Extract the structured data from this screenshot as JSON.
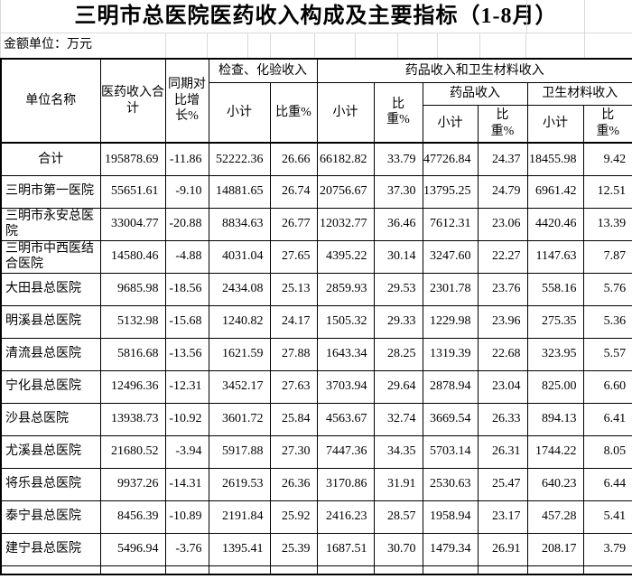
{
  "title": "三明市总医院医药收入构成及主要指标（1-8月）",
  "unit_note": "金额单位：万元",
  "table": {
    "header": {
      "unit_name": "单位名称",
      "total_income": "医药收入合计",
      "yoy_growth": "同期对比增长%",
      "exam_group": "检查、化验收入",
      "drug_material_group": "药品收入和卫生材料收入",
      "drug_group": "药品收入",
      "material_group": "卫生材料收入",
      "subtotal": "小计",
      "share": "比重%"
    },
    "rows": [
      {
        "name": "合计",
        "values": [
          "195878.69",
          "-11.86",
          "52222.36",
          "26.66",
          "66182.82",
          "33.79",
          "47726.84",
          "24.37",
          "18455.98",
          "9.42"
        ]
      },
      {
        "name": "三明市第一医院",
        "values": [
          "55651.61",
          "-9.10",
          "14881.65",
          "26.74",
          "20756.67",
          "37.30",
          "13795.25",
          "24.79",
          "6961.42",
          "12.51"
        ]
      },
      {
        "name": "三明市永安总医院",
        "values": [
          "33004.77",
          "-20.88",
          "8834.63",
          "26.77",
          "12032.77",
          "36.46",
          "7612.31",
          "23.06",
          "4420.46",
          "13.39"
        ]
      },
      {
        "name": "三明市中西医结合医院",
        "values": [
          "14580.46",
          "-4.88",
          "4031.04",
          "27.65",
          "4395.22",
          "30.14",
          "3247.60",
          "22.27",
          "1147.63",
          "7.87"
        ]
      },
      {
        "name": "大田县总医院",
        "values": [
          "9685.98",
          "-18.56",
          "2434.08",
          "25.13",
          "2859.93",
          "29.53",
          "2301.78",
          "23.76",
          "558.16",
          "5.76"
        ]
      },
      {
        "name": "明溪县总医院",
        "values": [
          "5132.98",
          "-15.68",
          "1240.82",
          "24.17",
          "1505.32",
          "29.33",
          "1229.98",
          "23.96",
          "275.35",
          "5.36"
        ]
      },
      {
        "name": "清流县总医院",
        "values": [
          "5816.68",
          "-13.56",
          "1621.59",
          "27.88",
          "1643.34",
          "28.25",
          "1319.39",
          "22.68",
          "323.95",
          "5.57"
        ]
      },
      {
        "name": "宁化县总医院",
        "values": [
          "12496.36",
          "-12.31",
          "3452.17",
          "27.63",
          "3703.94",
          "29.64",
          "2878.94",
          "23.04",
          "825.00",
          "6.60"
        ]
      },
      {
        "name": "沙县总医院",
        "values": [
          "13938.73",
          "-10.92",
          "3601.72",
          "25.84",
          "4563.67",
          "32.74",
          "3669.54",
          "26.33",
          "894.13",
          "6.41"
        ]
      },
      {
        "name": "尤溪县总医院",
        "values": [
          "21680.52",
          "-3.94",
          "5917.88",
          "27.30",
          "7447.36",
          "34.35",
          "5703.14",
          "26.31",
          "1744.22",
          "8.05"
        ]
      },
      {
        "name": "将乐县总医院",
        "values": [
          "9937.26",
          "-14.31",
          "2619.53",
          "26.36",
          "3170.86",
          "31.91",
          "2530.63",
          "25.47",
          "640.23",
          "6.44"
        ]
      },
      {
        "name": "泰宁县总医院",
        "values": [
          "8456.39",
          "-10.89",
          "2191.84",
          "25.92",
          "2416.23",
          "28.57",
          "1958.94",
          "23.17",
          "457.28",
          "5.41"
        ]
      },
      {
        "name": "建宁县总医院",
        "values": [
          "5496.94",
          "-3.76",
          "1395.41",
          "25.39",
          "1687.51",
          "30.70",
          "1479.34",
          "26.91",
          "208.17",
          "3.79"
        ]
      }
    ]
  }
}
